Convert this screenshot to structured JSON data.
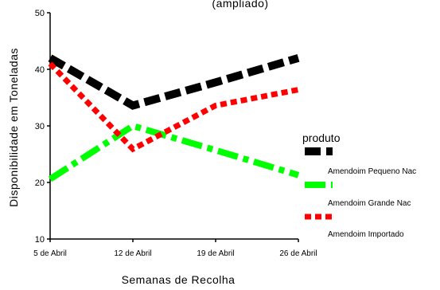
{
  "chart_data": {
    "type": "line",
    "title": "",
    "top_text_fragment": "(ampliado)",
    "xlabel": "Semanas de Recolha",
    "ylabel": "Disponibilidade em Toneladas",
    "categories": [
      "5 de Abril",
      "12 de Abril",
      "19 de Abril",
      "26 de Abril"
    ],
    "ylim": [
      10,
      50
    ],
    "yticks": [
      10,
      20,
      30,
      40,
      50
    ],
    "grid": false,
    "legend": {
      "title": "produto",
      "placement": "right"
    },
    "series": [
      {
        "name": "Amendoim Pequeno Nac",
        "color": "#000000",
        "style": "dashed",
        "values": [
          42.0,
          33.6,
          37.7,
          42.0
        ]
      },
      {
        "name": "Amendoim Grande Nac",
        "color": "#00ff00",
        "style": "dash-dot",
        "values": [
          20.6,
          30.0,
          25.7,
          21.3
        ]
      },
      {
        "name": "Amendoim Importado",
        "color": "#ff0000",
        "style": "dotted",
        "values": [
          41.0,
          25.9,
          33.6,
          36.4
        ]
      }
    ]
  }
}
